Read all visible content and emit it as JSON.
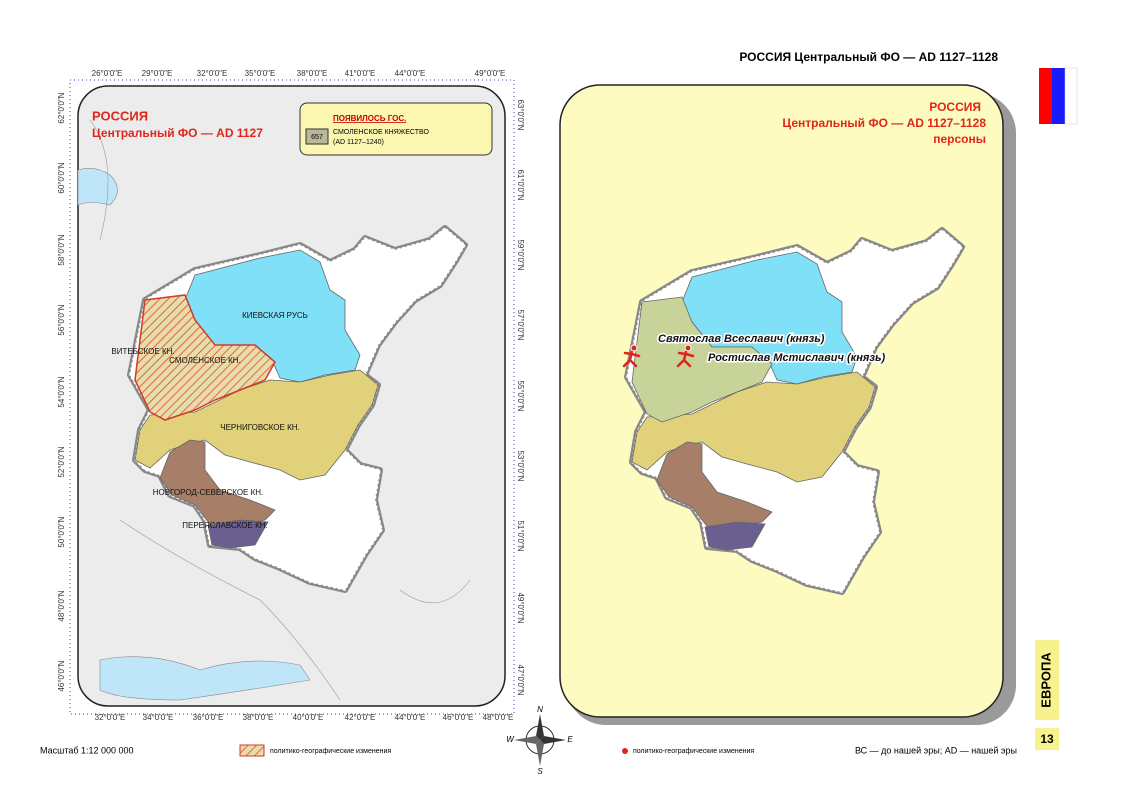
{
  "header": {
    "title": "РОССИЯ Центральный ФО — AD 1127–1128"
  },
  "left_map": {
    "title": "РОССИЯ",
    "subtitle": "Центральный ФО — AD 1127",
    "legend": {
      "heading": "ПОЯВИЛОСЬ ГОС.",
      "code": "657",
      "state": "СМОЛЕНСКОЕ КНЯЖЕСТВО",
      "period": "(AD 1127–1240)"
    },
    "regions": [
      "КИЕВСКАЯ РУСЬ",
      "ВИТЕБСКОЕ КН.",
      "СМОЛЕНСКОЕ КН.",
      "ЧЕРНИГОВСКОЕ КН.",
      "НОВГОРОД-СЕВЕРСКОЕ КН.",
      "ПЕРЕЯСЛАВСКОЕ КН."
    ],
    "top_ticks": [
      "26°0'0\"E",
      "29°0'0\"E",
      "32°0'0\"E",
      "35°0'0\"E",
      "38°0'0\"E",
      "41°0'0\"E",
      "44°0'0\"E",
      "49°0'0\"E"
    ],
    "bottom_ticks": [
      "32°0'0\"E",
      "34°0'0\"E",
      "36°0'0\"E",
      "38°0'0\"E",
      "40°0'0\"E",
      "42°0'0\"E",
      "44°0'0\"E",
      "46°0'0\"E",
      "48°0'0\"E"
    ],
    "left_ticks": [
      "62°0'0\"N",
      "60°0'0\"N",
      "58°0'0\"N",
      "56°0'0\"N",
      "54°0'0\"N",
      "52°0'0\"N",
      "50°0'0\"N",
      "48°0'0\"N",
      "46°0'0\"N"
    ],
    "right_ticks": [
      "63°0'0\"N",
      "61°0'0\"N",
      "59°0'0\"N",
      "57°0'0\"N",
      "55°0'0\"N",
      "53°0'0\"N",
      "51°0'0\"N",
      "49°0'0\"N",
      "47°0'0\"N"
    ]
  },
  "right_map": {
    "title": "РОССИЯ",
    "subtitle": "Центральный ФО — AD 1127–1128",
    "caption": "персоны",
    "persons": [
      "Святослав Всеславич (князь)",
      "Ростислав Мстиславич (князь)"
    ]
  },
  "compass": [
    "N",
    "W",
    "E",
    "S"
  ],
  "footer": {
    "scale": "Масштаб 1:12 000 000",
    "left_legend": "политико-географические изменения",
    "right_legend": "политико-географические изменения",
    "note": "ВС — до нашей эры; AD — нашей эры",
    "section": "ЕВРОПА",
    "page": "13"
  }
}
